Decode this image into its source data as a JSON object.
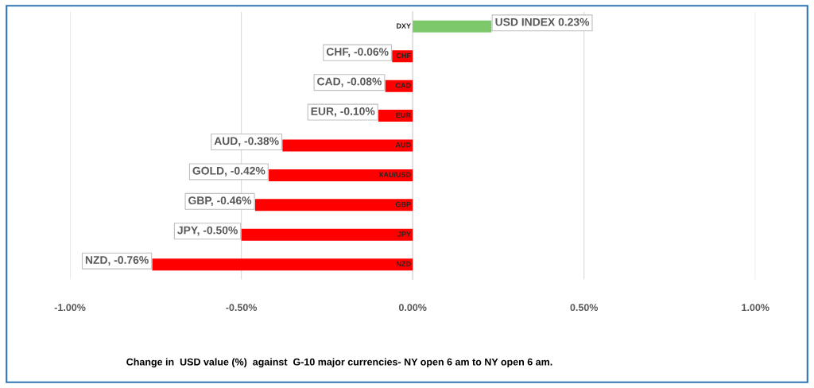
{
  "chart_data": {
    "type": "bar",
    "orientation": "horizontal",
    "categories": [
      "DXY",
      "CHF",
      "CAD",
      "EUR",
      "AUD",
      "XAU/USD",
      "GBP",
      "JPY",
      "NZD"
    ],
    "values": [
      0.23,
      -0.06,
      -0.08,
      -0.1,
      -0.38,
      -0.42,
      -0.46,
      -0.5,
      -0.76
    ],
    "colors": [
      "#7dc86a",
      "#ff0000",
      "#ff0000",
      "#ff0000",
      "#ff0000",
      "#ff0000",
      "#ff0000",
      "#ff0000",
      "#ff0000"
    ],
    "value_labels": [
      "USD INDEX 0.23%",
      "CHF, -0.06%",
      "CAD, -0.08%",
      "EUR, -0.10%",
      "AUD, -0.38%",
      "GOLD, -0.42%",
      "GBP, -0.46%",
      "JPY, -0.50%",
      "NZD, -0.76%"
    ],
    "xlim": [
      -1.0,
      1.0
    ],
    "xticks": [
      {
        "value": -1.0,
        "label": "-1.00%"
      },
      {
        "value": -0.5,
        "label": "-0.50%"
      },
      {
        "value": 0,
        "label": "0.00%"
      },
      {
        "value": 0.5,
        "label": "0.50%"
      },
      {
        "value": 1.0,
        "label": "1.00%"
      }
    ],
    "grid": "x",
    "annotations": [
      "Change in  USD value (%)  against  G-10 major currencies- NY open 6 am to NY open 6 am."
    ]
  }
}
